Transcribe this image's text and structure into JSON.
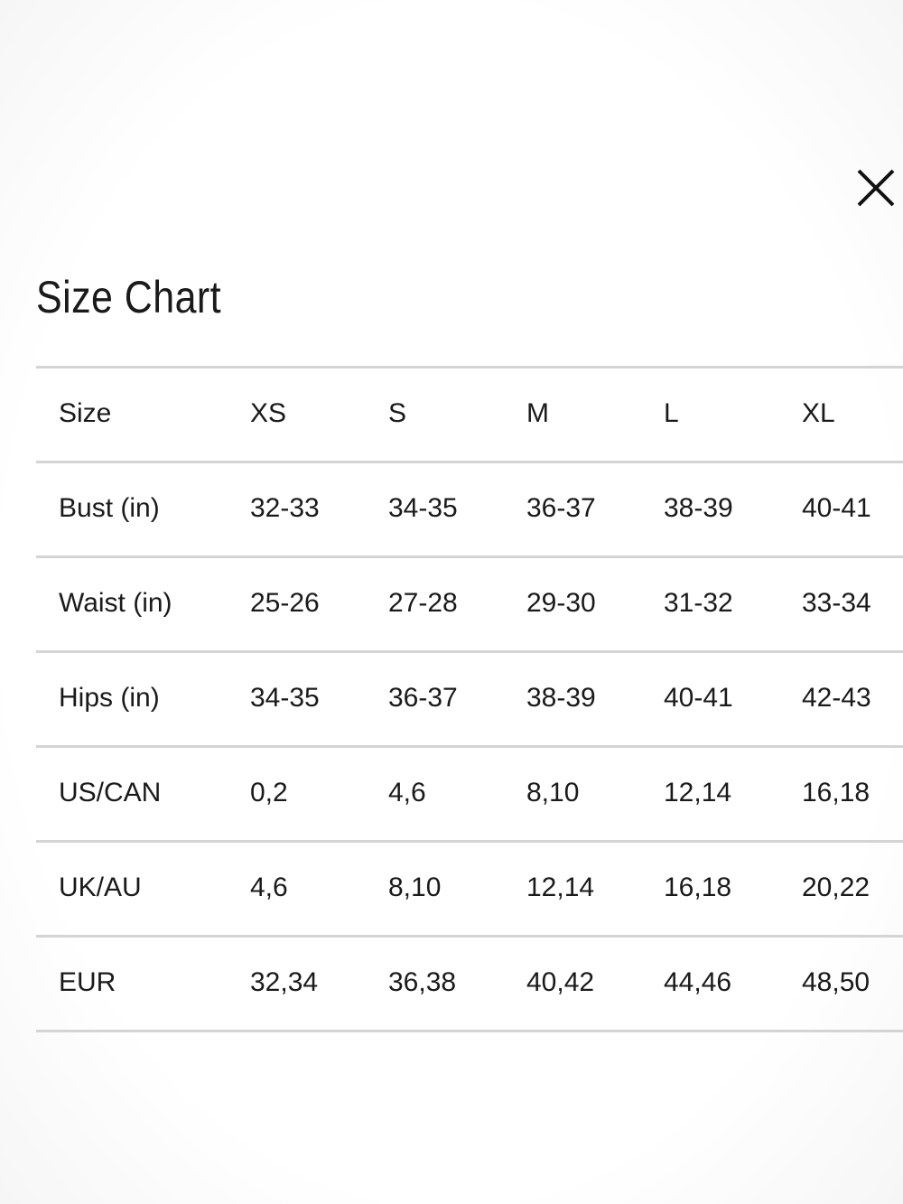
{
  "title": "Size Chart",
  "table": {
    "header": [
      "Size",
      "XS",
      "S",
      "M",
      "L",
      "XL"
    ],
    "rows": [
      [
        "Bust (in)",
        "32-33",
        "34-35",
        "36-37",
        "38-39",
        "40-41"
      ],
      [
        "Waist (in)",
        "25-26",
        "27-28",
        "29-30",
        "31-32",
        "33-34"
      ],
      [
        "Hips (in)",
        "34-35",
        "36-37",
        "38-39",
        "40-41",
        "42-43"
      ],
      [
        "US/CAN",
        "0,2",
        "4,6",
        "8,10",
        "12,14",
        "16,18"
      ],
      [
        "UK/AU",
        "4,6",
        "8,10",
        "12,14",
        "16,18",
        "20,22"
      ],
      [
        "EUR",
        "32,34",
        "36,38",
        "40,42",
        "44,46",
        "48,50"
      ]
    ]
  }
}
